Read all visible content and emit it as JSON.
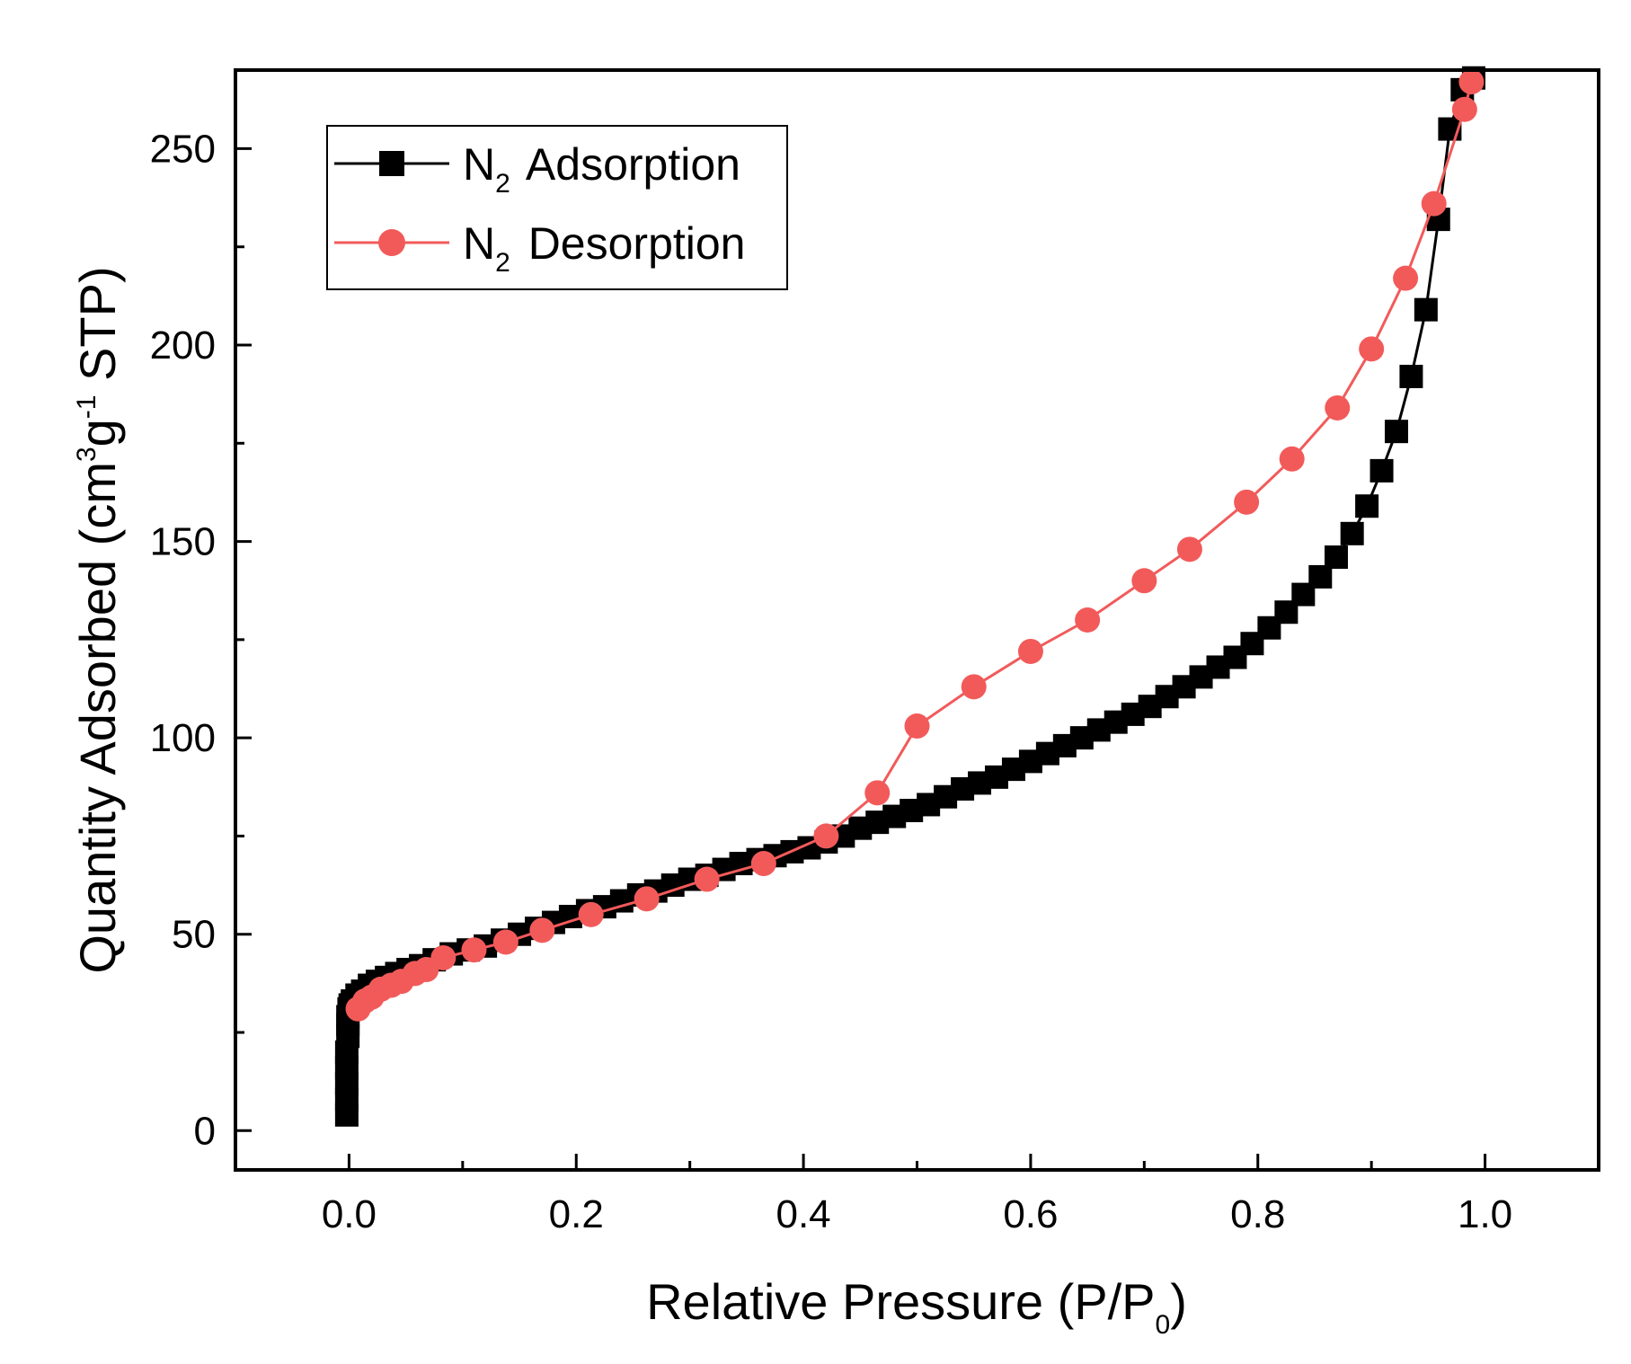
{
  "chart_data": {
    "type": "line",
    "xlabel": "Relative Pressure (P/P",
    "xlabel_sub": "0",
    "xlabel_end": ")",
    "ylabel_a": "Quantity Adsorbed (cm",
    "ylabel_sup1": "3",
    "ylabel_b": "g",
    "ylabel_sup2": "-1",
    "ylabel_c": " STP)",
    "xlim": [
      -0.1,
      1.1
    ],
    "ylim": [
      -10,
      270
    ],
    "xticks": [
      0.0,
      0.2,
      0.4,
      0.6,
      0.8,
      1.0
    ],
    "xtick_labels": [
      "0.0",
      "0.2",
      "0.4",
      "0.6",
      "0.8",
      "1.0"
    ],
    "yticks": [
      0,
      50,
      100,
      150,
      200,
      250
    ],
    "ytick_labels": [
      "0",
      "50",
      "100",
      "150",
      "200",
      "250"
    ],
    "legend_position": "top-left",
    "series": [
      {
        "name": "N2 Adsorption",
        "legend_main": "N",
        "legend_sub": "2",
        "legend_rest": " Adsorption",
        "color": "#000000",
        "marker": "square",
        "x": [
          -0.002,
          -0.002,
          -0.002,
          -0.002,
          -0.002,
          -0.001,
          -0.001,
          -0.001,
          0.0,
          0.001,
          0.003,
          0.007,
          0.012,
          0.018,
          0.025,
          0.033,
          0.042,
          0.052,
          0.063,
          0.075,
          0.09,
          0.105,
          0.12,
          0.135,
          0.15,
          0.165,
          0.18,
          0.195,
          0.21,
          0.225,
          0.24,
          0.255,
          0.27,
          0.285,
          0.3,
          0.315,
          0.33,
          0.345,
          0.36,
          0.375,
          0.39,
          0.405,
          0.42,
          0.435,
          0.45,
          0.465,
          0.48,
          0.495,
          0.51,
          0.525,
          0.54,
          0.555,
          0.57,
          0.585,
          0.6,
          0.615,
          0.63,
          0.645,
          0.66,
          0.675,
          0.69,
          0.705,
          0.72,
          0.735,
          0.75,
          0.765,
          0.78,
          0.795,
          0.81,
          0.825,
          0.84,
          0.855,
          0.869,
          0.883,
          0.896,
          0.909,
          0.922,
          0.935,
          0.948,
          0.959,
          0.969,
          0.98,
          0.99
        ],
        "y": [
          4,
          8,
          12,
          16,
          20,
          24,
          27,
          29,
          31,
          32,
          33,
          34.5,
          35.5,
          37,
          38,
          39,
          40,
          41,
          42,
          43.5,
          45,
          46,
          47,
          48.5,
          50,
          51.5,
          53,
          54.5,
          56,
          57,
          58.5,
          60,
          61,
          62.5,
          64,
          65,
          66.5,
          68,
          69,
          70,
          71,
          72,
          73.5,
          75,
          77,
          78.5,
          80,
          81.5,
          83,
          85,
          87,
          88.5,
          90,
          92,
          94,
          96,
          98,
          100,
          102,
          104,
          106,
          108,
          110.5,
          113,
          115.5,
          118,
          120.5,
          124,
          128,
          132,
          136.5,
          141,
          146,
          152,
          159,
          168,
          178,
          192,
          209,
          232,
          255,
          265,
          268
        ]
      },
      {
        "name": "N2 Desorption",
        "legend_main": "N",
        "legend_sub": "2",
        "legend_rest": " Desorption",
        "color": "#f25a5a",
        "marker": "circle",
        "x": [
          0.988,
          0.982,
          0.955,
          0.93,
          0.9,
          0.87,
          0.83,
          0.79,
          0.74,
          0.7,
          0.65,
          0.6,
          0.55,
          0.5,
          0.465,
          0.42,
          0.365,
          0.315,
          0.262,
          0.213,
          0.17,
          0.138,
          0.11,
          0.083,
          0.068,
          0.058,
          0.046,
          0.037,
          0.028,
          0.02,
          0.014,
          0.008
        ],
        "y": [
          267,
          260,
          236,
          217,
          199,
          184,
          171,
          160,
          148,
          140,
          130,
          122,
          113,
          103,
          86,
          75,
          68,
          64,
          59,
          55,
          51,
          48,
          46,
          44,
          41,
          40,
          38,
          37,
          36,
          34,
          33,
          31
        ]
      }
    ]
  }
}
